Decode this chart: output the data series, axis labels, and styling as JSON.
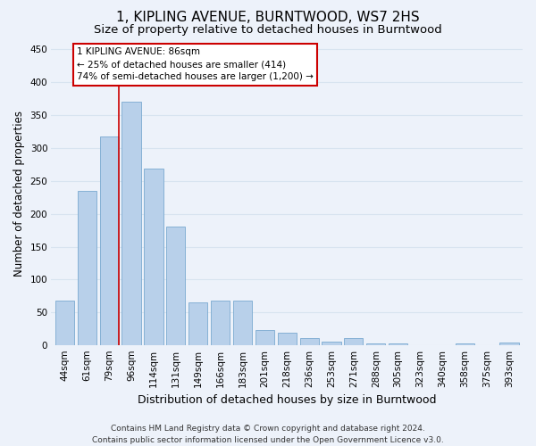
{
  "title": "1, KIPLING AVENUE, BURNTWOOD, WS7 2HS",
  "subtitle": "Size of property relative to detached houses in Burntwood",
  "xlabel": "Distribution of detached houses by size in Burntwood",
  "ylabel": "Number of detached properties",
  "categories": [
    "44sqm",
    "61sqm",
    "79sqm",
    "96sqm",
    "114sqm",
    "131sqm",
    "149sqm",
    "166sqm",
    "183sqm",
    "201sqm",
    "218sqm",
    "236sqm",
    "253sqm",
    "271sqm",
    "288sqm",
    "305sqm",
    "323sqm",
    "340sqm",
    "358sqm",
    "375sqm",
    "393sqm"
  ],
  "values": [
    68,
    235,
    317,
    370,
    268,
    180,
    65,
    68,
    68,
    24,
    20,
    11,
    6,
    11,
    3,
    3,
    0,
    0,
    3,
    0,
    4
  ],
  "bar_color": "#b8d0ea",
  "bar_edge_color": "#7aaad0",
  "vline_color": "#cc0000",
  "annotation_text": "1 KIPLING AVENUE: 86sqm\n← 25% of detached houses are smaller (414)\n74% of semi-detached houses are larger (1,200) →",
  "annotation_box_facecolor": "#ffffff",
  "annotation_box_edgecolor": "#cc0000",
  "ylim": [
    0,
    460
  ],
  "yticks": [
    0,
    50,
    100,
    150,
    200,
    250,
    300,
    350,
    400,
    450
  ],
  "footer_text": "Contains HM Land Registry data © Crown copyright and database right 2024.\nContains public sector information licensed under the Open Government Licence v3.0.",
  "background_color": "#edf2fa",
  "grid_color": "#d8e4f0",
  "title_fontsize": 11,
  "subtitle_fontsize": 9.5,
  "xlabel_fontsize": 9,
  "ylabel_fontsize": 8.5,
  "tick_fontsize": 7.5,
  "annot_fontsize": 7.5,
  "footer_fontsize": 6.5
}
